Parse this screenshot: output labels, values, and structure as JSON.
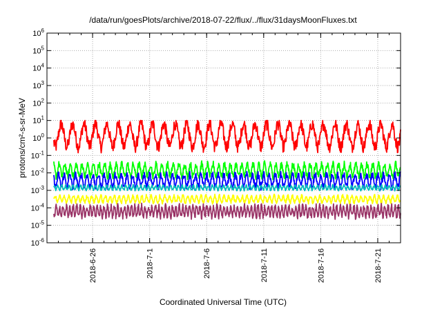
{
  "chart_data": {
    "type": "line",
    "title": "/data/run/goesPlots/archive/2018-07-22/flux/../flux/31daysMoonFluxes.txt",
    "xlabel": "Coordinated Universal Time (UTC)",
    "ylabel": "protons/cm²-s-sr-MeV",
    "yscale": "log",
    "ylim": [
      1e-06,
      1000000.0
    ],
    "xlim": [
      "2018-06-22",
      "2018-07-23"
    ],
    "grid": true,
    "x_ticks": [
      "2018-6-26",
      "2018-7-1",
      "2018-7-6",
      "2018-7-11",
      "2018-7-16",
      "2018-7-21"
    ],
    "y_ticks": [
      {
        "base": "10",
        "exp": "-6"
      },
      {
        "base": "10",
        "exp": "-5"
      },
      {
        "base": "10",
        "exp": "-4"
      },
      {
        "base": "10",
        "exp": "-3"
      },
      {
        "base": "10",
        "exp": "-2"
      },
      {
        "base": "10",
        "exp": "-1"
      },
      {
        "base": "10",
        "exp": "0"
      },
      {
        "base": "10",
        "exp": "1"
      },
      {
        "base": "10",
        "exp": "2"
      },
      {
        "base": "10",
        "exp": "3"
      },
      {
        "base": "10",
        "exp": "4"
      },
      {
        "base": "10",
        "exp": "5"
      },
      {
        "base": "10",
        "exp": "6"
      }
    ],
    "series": [
      {
        "color": "#ff0000",
        "typical_log10_range": [
          -1.0,
          0.8
        ],
        "mean_log10": 0.15,
        "amp": 0.65,
        "period_days": 1.0
      },
      {
        "color": "#00ff00",
        "typical_log10_range": [
          -2.3,
          -1.2
        ],
        "mean_log10": -1.85,
        "amp": 0.35,
        "period_days": 0.5
      },
      {
        "color": "#0000ff",
        "typical_log10_range": [
          -3.0,
          -2.0
        ],
        "mean_log10": -2.45,
        "amp": 0.35,
        "period_days": 0.5
      },
      {
        "color": "#00bbbb",
        "typical_log10_range": [
          -3.1,
          -2.6
        ],
        "mean_log10": -2.85,
        "amp": 0.12,
        "period_days": 0.33
      },
      {
        "color": "#ffff00",
        "typical_log10_range": [
          -3.8,
          -3.2
        ],
        "mean_log10": -3.5,
        "amp": 0.18,
        "period_days": 0.4
      },
      {
        "color": "#993366",
        "typical_log10_range": [
          -4.7,
          -3.7
        ],
        "mean_log10": -4.2,
        "amp": 0.3,
        "period_days": 0.3
      }
    ]
  }
}
